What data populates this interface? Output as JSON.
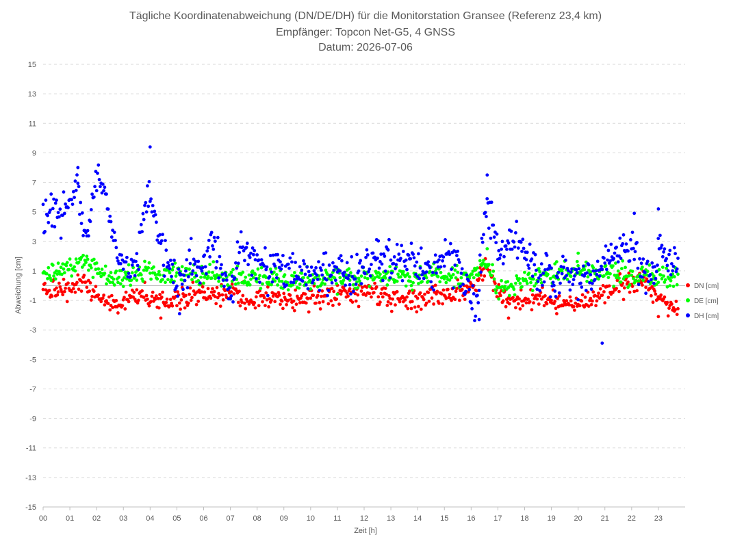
{
  "chart_data": {
    "type": "scatter",
    "title": "Tägliche Koordinatenabweichung (DN/DE/DH) für die Monitorstation Gransee (Referenz 23,4 km)",
    "subtitle": "Empfänger: Topcon Net-G5, 4 GNSS",
    "date_line": "Datum: 2026-07-06",
    "xlabel": "Zeit [h]",
    "ylabel": "Abweichung [cm]",
    "xlim": [
      0,
      24
    ],
    "ylim": [
      -15,
      15
    ],
    "x_ticks": [
      "00",
      "01",
      "02",
      "03",
      "04",
      "05",
      "06",
      "07",
      "08",
      "09",
      "10",
      "11",
      "12",
      "13",
      "14",
      "15",
      "16",
      "17",
      "18",
      "19",
      "20",
      "21",
      "22",
      "23"
    ],
    "y_ticks": [
      "15",
      "13",
      "11",
      "9",
      "7",
      "5",
      "3",
      "1",
      "-1",
      "-3",
      "-5",
      "-7",
      "-9",
      "-11",
      "-13",
      "-15"
    ],
    "y_tick_values": [
      15,
      13,
      11,
      9,
      7,
      5,
      3,
      1,
      -1,
      -3,
      -5,
      -7,
      -9,
      -11,
      -13,
      -15
    ],
    "grid": true,
    "legend_position": "right",
    "sample_interval_h": 0.03333,
    "series": [
      {
        "name": "DN [cm]",
        "color": "#ff0000",
        "anchors": [
          [
            0,
            -0.3
          ],
          [
            0.5,
            -0.4
          ],
          [
            1,
            -0.1
          ],
          [
            1.5,
            0.2
          ],
          [
            2,
            -0.5
          ],
          [
            2.5,
            -1.3
          ],
          [
            3,
            -1.0
          ],
          [
            3.5,
            -0.6
          ],
          [
            4,
            -0.8
          ],
          [
            4.5,
            -1.0
          ],
          [
            5,
            -0.8
          ],
          [
            6,
            -0.7
          ],
          [
            7,
            -0.5
          ],
          [
            8,
            -0.9
          ],
          [
            9,
            -1.0
          ],
          [
            10,
            -0.9
          ],
          [
            11,
            -0.6
          ],
          [
            12,
            -0.4
          ],
          [
            13,
            -0.8
          ],
          [
            14,
            -1.0
          ],
          [
            15,
            -0.7
          ],
          [
            16,
            -0.2
          ],
          [
            16.6,
            1.3
          ],
          [
            17,
            -0.6
          ],
          [
            18,
            -1.0
          ],
          [
            19,
            -1.0
          ],
          [
            20,
            -1.2
          ],
          [
            21,
            -0.5
          ],
          [
            22,
            0.3
          ],
          [
            22.5,
            0.5
          ],
          [
            23,
            -0.9
          ],
          [
            23.7,
            -1.4
          ]
        ],
        "spread": 0.35,
        "outliers": [
          [
            4.4,
            -2.2
          ],
          [
            17.4,
            -2.2
          ],
          [
            23,
            -2.1
          ],
          [
            19.2,
            -1.9
          ]
        ]
      },
      {
        "name": "DE [cm]",
        "color": "#00ff00",
        "anchors": [
          [
            0,
            0.6
          ],
          [
            0.5,
            1.0
          ],
          [
            1,
            1.4
          ],
          [
            1.5,
            1.7
          ],
          [
            2,
            1.0
          ],
          [
            2.5,
            0.5
          ],
          [
            3,
            0.6
          ],
          [
            3.5,
            0.8
          ],
          [
            4,
            1.0
          ],
          [
            4.5,
            0.6
          ],
          [
            5,
            0.9
          ],
          [
            6,
            0.7
          ],
          [
            7,
            0.5
          ],
          [
            8,
            0.6
          ],
          [
            9,
            0.4
          ],
          [
            10,
            0.4
          ],
          [
            11,
            0.4
          ],
          [
            12,
            0.6
          ],
          [
            13,
            0.6
          ],
          [
            14,
            0.6
          ],
          [
            15,
            0.6
          ],
          [
            16,
            0.6
          ],
          [
            16.6,
            1.6
          ],
          [
            17,
            -0.3
          ],
          [
            18,
            0.3
          ],
          [
            19,
            0.8
          ],
          [
            20,
            1.2
          ],
          [
            21,
            0.8
          ],
          [
            22,
            0.7
          ],
          [
            23,
            0.6
          ],
          [
            23.7,
            0.5
          ]
        ],
        "spread": 0.35,
        "outliers": [
          [
            16.6,
            2.5
          ],
          [
            20,
            2.2
          ]
        ]
      },
      {
        "name": "DH [cm]",
        "color": "#0000ff",
        "anchors": [
          [
            0,
            4.5
          ],
          [
            0.3,
            5.2
          ],
          [
            0.7,
            4.5
          ],
          [
            1,
            6.0
          ],
          [
            1.3,
            6.5
          ],
          [
            1.5,
            3.5
          ],
          [
            1.8,
            5.0
          ],
          [
            2,
            7.0
          ],
          [
            2.3,
            6.5
          ],
          [
            2.6,
            3.0
          ],
          [
            3,
            1.5
          ],
          [
            3.5,
            1.2
          ],
          [
            3.8,
            5.0
          ],
          [
            4,
            6.2
          ],
          [
            4.3,
            3.5
          ],
          [
            4.6,
            1.8
          ],
          [
            5,
            0.4
          ],
          [
            5.5,
            1.3
          ],
          [
            6,
            1.2
          ],
          [
            6.3,
            3.0
          ],
          [
            6.6,
            1.5
          ],
          [
            7,
            -0.6
          ],
          [
            7.4,
            2.5
          ],
          [
            7.8,
            1.4
          ],
          [
            8,
            1.5
          ],
          [
            9,
            1.1
          ],
          [
            10,
            1.0
          ],
          [
            11,
            1.2
          ],
          [
            11.5,
            -0.2
          ],
          [
            12,
            1.5
          ],
          [
            12.5,
            1.8
          ],
          [
            13,
            1.8
          ],
          [
            14,
            1.5
          ],
          [
            14.5,
            0.7
          ],
          [
            15,
            2.3
          ],
          [
            15.5,
            1.5
          ],
          [
            16,
            -0.5
          ],
          [
            16.2,
            -2.0
          ],
          [
            16.5,
            5.0
          ],
          [
            16.8,
            4.5
          ],
          [
            17,
            2.0
          ],
          [
            17.5,
            3.5
          ],
          [
            18,
            2.5
          ],
          [
            18.5,
            1.0
          ],
          [
            19,
            0.2
          ],
          [
            19.5,
            1.0
          ],
          [
            20,
            0.5
          ],
          [
            20.5,
            1.0
          ],
          [
            21,
            1.5
          ],
          [
            21.5,
            2.0
          ],
          [
            22,
            2.5
          ],
          [
            22.5,
            0.5
          ],
          [
            23,
            2.0
          ],
          [
            23.7,
            1.4
          ]
        ],
        "spread": 0.65,
        "outliers": [
          [
            4.0,
            9.4
          ],
          [
            1.3,
            8.0
          ],
          [
            16.6,
            7.5
          ],
          [
            20.9,
            -3.9
          ],
          [
            5.1,
            -1.9
          ],
          [
            23,
            5.2
          ],
          [
            22.1,
            4.9
          ],
          [
            16.3,
            -2.3
          ]
        ]
      }
    ]
  }
}
